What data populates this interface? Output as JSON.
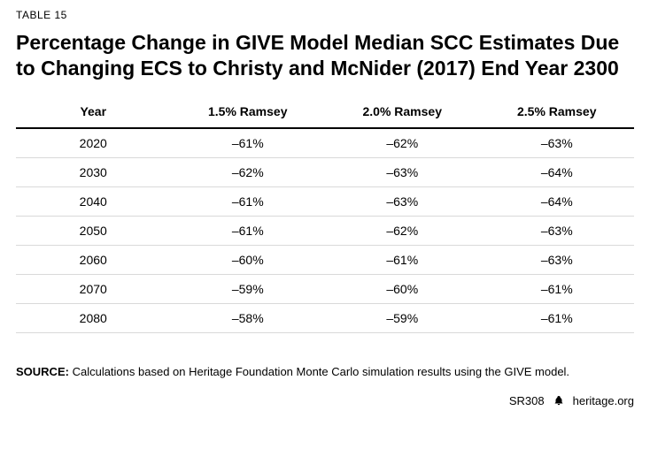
{
  "table_number": "TABLE 15",
  "title": "Percentage Change in GIVE Model Median SCC Estimates Due to Changing ECS to Christy and McNider (2017) End Year 2300",
  "table": {
    "type": "table",
    "columns": [
      "Year",
      "1.5% Ramsey",
      "2.0% Ramsey",
      "2.5% Ramsey"
    ],
    "column_widths_pct": [
      25,
      25,
      25,
      25
    ],
    "rows": [
      [
        "2020",
        "–61%",
        "–62%",
        "–63%"
      ],
      [
        "2030",
        "–62%",
        "–63%",
        "–64%"
      ],
      [
        "2040",
        "–61%",
        "–63%",
        "–64%"
      ],
      [
        "2050",
        "–61%",
        "–62%",
        "–63%"
      ],
      [
        "2060",
        "–60%",
        "–61%",
        "–63%"
      ],
      [
        "2070",
        "–59%",
        "–60%",
        "–61%"
      ],
      [
        "2080",
        "–58%",
        "–59%",
        "–61%"
      ]
    ],
    "header_fontsize": 14,
    "cell_fontsize": 14,
    "header_border_color": "#000000",
    "row_border_color": "#d9d9d9",
    "text_align": "center",
    "background_color": "#ffffff"
  },
  "source": {
    "label": "SOURCE:",
    "text": "Calculations based on Heritage Foundation Monte Carlo simulation results using the GIVE model."
  },
  "footer": {
    "sr": "SR308",
    "icon": "bell-icon",
    "site": "heritage.org"
  },
  "colors": {
    "text": "#000000",
    "background": "#ffffff",
    "header_rule": "#000000",
    "row_rule": "#d9d9d9"
  },
  "typography": {
    "table_number_fontsize": 12,
    "title_fontsize": 23,
    "title_weight": 700,
    "body_fontsize": 14,
    "source_fontsize": 13,
    "footer_fontsize": 13
  }
}
